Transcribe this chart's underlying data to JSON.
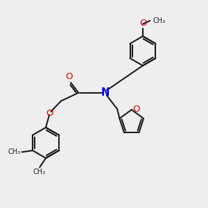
{
  "bg_color": "#eeeeee",
  "bond_color": "#1a1a1a",
  "N_color": "#0000ee",
  "O_color": "#dd0000",
  "lw": 1.5,
  "fs": 8.5,
  "fig_size": [
    3.0,
    3.0
  ],
  "dpi": 100,
  "xlim": [
    0,
    10
  ],
  "ylim": [
    0,
    10
  ]
}
